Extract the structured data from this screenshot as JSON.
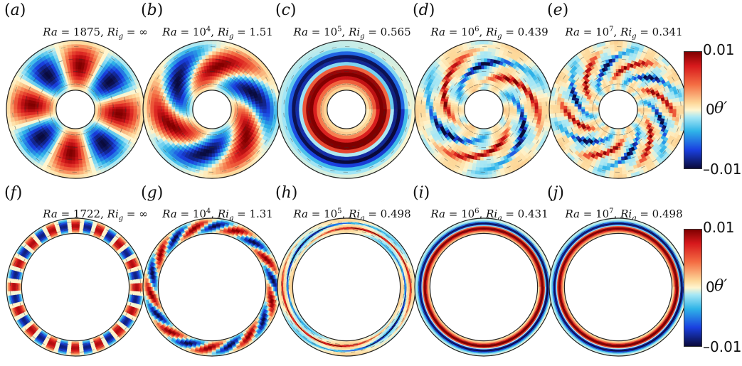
{
  "figure": {
    "rows": [
      {
        "panels": [
          {
            "id": "a",
            "caption": {
              "ra": "1875",
              "ri": "∞",
              "ra_exp": ""
            },
            "mode": 4,
            "kind": "lobes",
            "inner": 0.28
          },
          {
            "id": "b",
            "caption": {
              "ra": "10",
              "ra_exp": "4",
              "ri": "1.51"
            },
            "mode": 3,
            "kind": "spiral",
            "inner": 0.28
          },
          {
            "id": "c",
            "caption": {
              "ra": "10",
              "ra_exp": "5",
              "ri": "0.565"
            },
            "mode": 1,
            "kind": "ring",
            "inner": 0.28
          },
          {
            "id": "d",
            "caption": {
              "ra": "10",
              "ra_exp": "6",
              "ri": "0.439"
            },
            "mode": 3,
            "kind": "thinspiral",
            "inner": 0.28
          },
          {
            "id": "e",
            "caption": {
              "ra": "10",
              "ra_exp": "7",
              "ri": "0.341"
            },
            "mode": 6,
            "kind": "thinspiral",
            "inner": 0.28
          }
        ],
        "colorbar": {
          "max": "0.01",
          "mid": "0",
          "min": "–0.01",
          "symbol": "θ′"
        }
      },
      {
        "panels": [
          {
            "id": "f",
            "caption": {
              "ra": "1722",
              "ri": "∞",
              "ra_exp": ""
            },
            "mode": 16,
            "kind": "lobes",
            "inner": 0.78
          },
          {
            "id": "g",
            "caption": {
              "ra": "10",
              "ra_exp": "4",
              "ri": "1.31"
            },
            "mode": 9,
            "kind": "spiral",
            "inner": 0.78
          },
          {
            "id": "h",
            "caption": {
              "ra": "10",
              "ra_exp": "5",
              "ri": "0.498"
            },
            "mode": 2,
            "kind": "thinspiral",
            "inner": 0.78
          },
          {
            "id": "i",
            "caption": {
              "ra": "10",
              "ra_exp": "6",
              "ri": "0.431"
            },
            "mode": 1,
            "kind": "ring",
            "inner": 0.78
          },
          {
            "id": "j",
            "caption": {
              "ra": "10",
              "ra_exp": "7",
              "ri": "0.498"
            },
            "mode": 1,
            "kind": "ring",
            "inner": 0.78
          }
        ],
        "colorbar": {
          "max": "0.01",
          "mid": "0",
          "min": "–0.01",
          "symbol": "θ′"
        }
      }
    ],
    "labels": {
      "ra_symbol": "Ra",
      "ri_symbol": "Ri",
      "ri_sub": "g",
      "eq": "="
    }
  }
}
